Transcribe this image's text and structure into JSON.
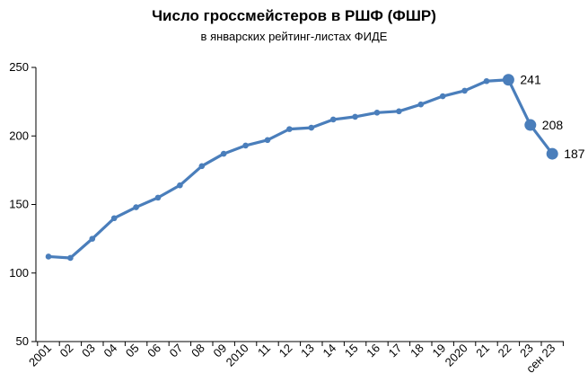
{
  "chart_data": {
    "type": "line",
    "title": "Число гроссмейстеров в РШФ (ФШР)",
    "subtitle": "в январских рейтинг-листах ФИДЕ",
    "xlabel": "",
    "ylabel": "",
    "categories": [
      "2001",
      "02",
      "03",
      "04",
      "05",
      "06",
      "07",
      "08",
      "09",
      "2010",
      "11",
      "12",
      "13",
      "14",
      "15",
      "16",
      "17",
      "18",
      "19",
      "2020",
      "21",
      "22",
      "23",
      "сен 23"
    ],
    "series": [
      {
        "values": [
          112,
          111,
          125,
          140,
          148,
          155,
          164,
          178,
          187,
          193,
          197,
          205,
          206,
          212,
          214,
          217,
          218,
          223,
          229,
          233,
          240,
          241,
          208,
          187
        ]
      }
    ],
    "data_labels": [
      {
        "index": 21,
        "text": "241"
      },
      {
        "index": 22,
        "text": "208"
      },
      {
        "index": 23,
        "text": "187"
      }
    ],
    "ylim": [
      50,
      250
    ],
    "yticks": [
      50,
      100,
      150,
      200,
      250
    ],
    "grid": false,
    "legend": "none",
    "colors": {
      "line": "#4a7ebb",
      "axis": "#000000",
      "text": "#000000"
    }
  }
}
